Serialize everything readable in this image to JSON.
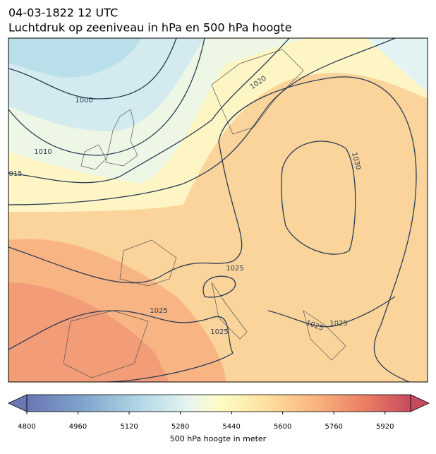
{
  "header": {
    "title": "04-03-1822 12 UTC",
    "subtitle": "Luchtdruk op zeeniveau in hPa en 500 hPa hoogte"
  },
  "isobar_labels": [
    "1000",
    "1010",
    "015",
    "1020",
    "1030",
    "1025",
    "1025",
    "1025",
    "1025",
    "1025"
  ],
  "colorbar": {
    "label": "500 hPa hoogte in meter",
    "range": [
      4800,
      6000
    ],
    "ticks": [
      4800,
      4960,
      5120,
      5280,
      5440,
      5600,
      5760,
      5920
    ]
  }
}
